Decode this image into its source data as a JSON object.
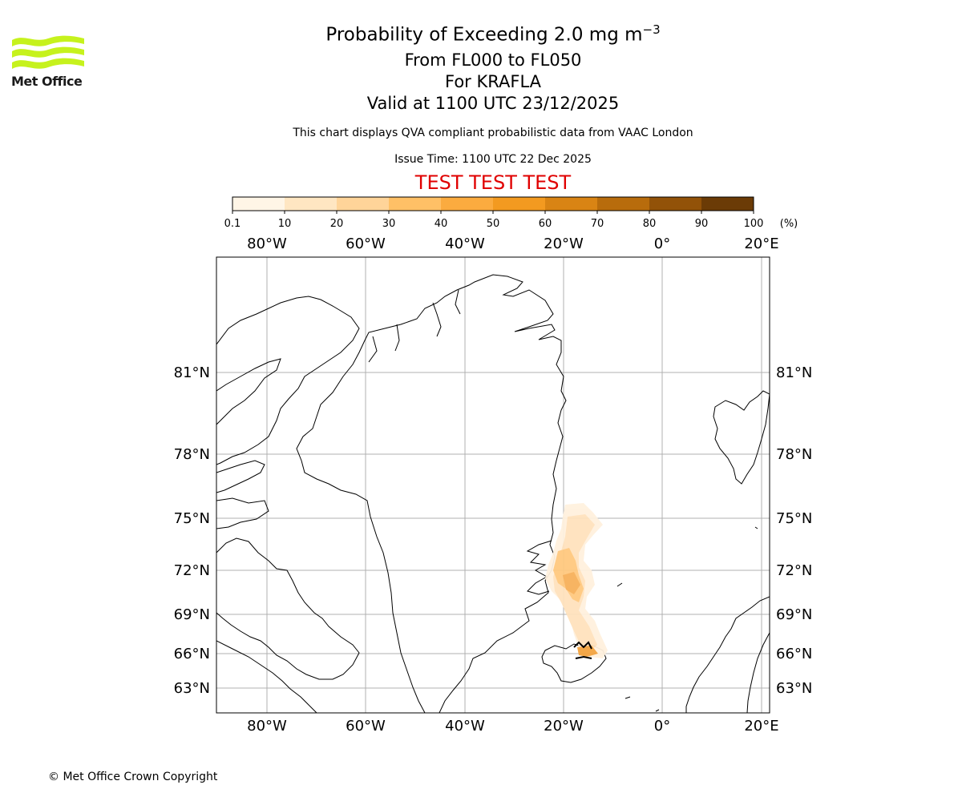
{
  "header": {
    "title_line1": "Probability of Exceeding 2.0 mg m",
    "title_exponent": "−3",
    "title_line2": "From FL000 to FL050",
    "title_line3": "For KRAFLA",
    "title_line4": "Valid at 1100 UTC 23/12/2025",
    "description": "This chart displays QVA compliant probabilistic data from VAAC London",
    "issue_time": "Issue Time: 1100 UTC 22 Dec 2025",
    "test_banner": "TEST TEST TEST"
  },
  "logo": {
    "text": "Met Office"
  },
  "colorbar": {
    "tick_labels": [
      "0.1",
      "10",
      "20",
      "30",
      "40",
      "50",
      "60",
      "70",
      "80",
      "90",
      "100"
    ],
    "unit": "(%)",
    "colors": [
      "#fff5e6",
      "#ffe6c2",
      "#ffd499",
      "#ffc066",
      "#fbab3f",
      "#f39a20",
      "#d98414",
      "#b86c0c",
      "#925208",
      "#6b3b06"
    ]
  },
  "map": {
    "lon_labels": [
      "80°W",
      "60°W",
      "40°W",
      "20°W",
      "0°",
      "20°E"
    ],
    "lat_labels": [
      "81°N",
      "78°N",
      "75°N",
      "72°N",
      "69°N",
      "66°N",
      "63°N"
    ],
    "grid_color": "#b0b0b0"
  },
  "footer": {
    "copyright": "© Met Office Crown Copyright"
  }
}
